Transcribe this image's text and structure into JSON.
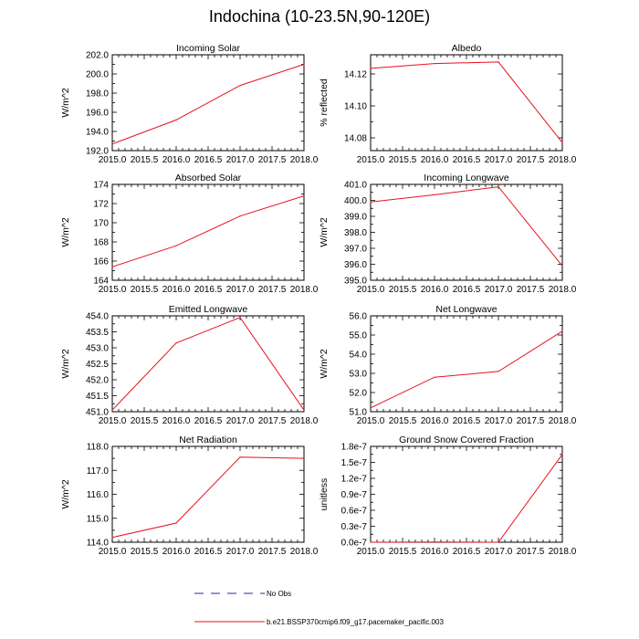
{
  "figure_title": "Indochina (10-23.5N,90-120E)",
  "legend": {
    "obs_label": "No Obs",
    "obs_color": "#2b2b8f",
    "model_label": "b.e21.BSSP370cmip6.f09_g17.pacemaker_pacific.003",
    "model_color": "#e8121d"
  },
  "chart_data": [
    {
      "type": "line",
      "title": "Incoming Solar",
      "ylabel": "W/m^2",
      "x": [
        2015.0,
        2016.0,
        2017.0,
        2018.0
      ],
      "y": [
        192.7,
        195.2,
        198.8,
        201.0
      ],
      "xlim": [
        2015.0,
        2018.0
      ],
      "ylim": [
        192.0,
        202.0
      ],
      "xticks": [
        "2015.0",
        "2015.5",
        "2016.0",
        "2016.5",
        "2017.0",
        "2017.5",
        "2018.0"
      ],
      "yticks": [
        192.0,
        194.0,
        196.0,
        198.0,
        200.0,
        202.0
      ],
      "yticklabels": [
        "192.0",
        "194.0",
        "196.0",
        "198.0",
        "200.0",
        "202.0"
      ]
    },
    {
      "type": "line",
      "title": "Albedo",
      "ylabel": "% reflected",
      "x": [
        2015.0,
        2016.0,
        2017.0,
        2018.0
      ],
      "y": [
        14.1235,
        14.1265,
        14.1275,
        14.077
      ],
      "xlim": [
        2015.0,
        2018.0
      ],
      "ylim": [
        14.072,
        14.132
      ],
      "xticks": [
        "2015.0",
        "2015.5",
        "2016.0",
        "2016.5",
        "2017.0",
        "2017.5",
        "2018.0"
      ],
      "yticks": [
        14.08,
        14.1,
        14.12
      ],
      "yticklabels": [
        "14.08",
        "14.10",
        "14.12"
      ]
    },
    {
      "type": "line",
      "title": "Absorbed Solar",
      "ylabel": "W/m^2",
      "x": [
        2015.0,
        2016.0,
        2017.0,
        2018.0
      ],
      "y": [
        165.4,
        167.6,
        170.7,
        172.8
      ],
      "xlim": [
        2015.0,
        2018.0
      ],
      "ylim": [
        164.0,
        174.0
      ],
      "xticks": [
        "2015.0",
        "2015.5",
        "2016.0",
        "2016.5",
        "2017.0",
        "2017.5",
        "2018.0"
      ],
      "yticks": [
        164,
        166,
        168,
        170,
        172,
        174
      ],
      "yticklabels": [
        "164",
        "166",
        "168",
        "170",
        "172",
        "174"
      ]
    },
    {
      "type": "line",
      "title": "Incoming Longwave",
      "ylabel": "W/m^2",
      "x": [
        2015.0,
        2016.0,
        2017.0,
        2018.0
      ],
      "y": [
        399.9,
        400.35,
        400.85,
        395.9
      ],
      "xlim": [
        2015.0,
        2018.0
      ],
      "ylim": [
        395.0,
        401.0
      ],
      "xticks": [
        "2015.0",
        "2015.5",
        "2016.0",
        "2016.5",
        "2017.0",
        "2017.5",
        "2018.0"
      ],
      "yticks": [
        395.0,
        396.0,
        397.0,
        398.0,
        399.0,
        400.0,
        401.0
      ],
      "yticklabels": [
        "395.0",
        "396.0",
        "397.0",
        "398.0",
        "399.0",
        "400.0",
        "401.0"
      ]
    },
    {
      "type": "line",
      "title": "Emitted Longwave",
      "ylabel": "W/m^2",
      "x": [
        2015.0,
        2016.0,
        2017.0,
        2018.0
      ],
      "y": [
        451.05,
        453.15,
        453.95,
        451.05
      ],
      "xlim": [
        2015.0,
        2018.0
      ],
      "ylim": [
        451.0,
        454.0
      ],
      "xticks": [
        "2015.0",
        "2015.5",
        "2016.0",
        "2016.5",
        "2017.0",
        "2017.5",
        "2018.0"
      ],
      "yticks": [
        451.0,
        451.5,
        452.0,
        452.5,
        453.0,
        453.5,
        454.0
      ],
      "yticklabels": [
        "451.0",
        "451.5",
        "452.0",
        "452.5",
        "453.0",
        "453.5",
        "454.0"
      ]
    },
    {
      "type": "line",
      "title": "Net Longwave",
      "ylabel": "W/m^2",
      "x": [
        2015.0,
        2016.0,
        2017.0,
        2018.0
      ],
      "y": [
        51.2,
        52.8,
        53.1,
        55.2
      ],
      "xlim": [
        2015.0,
        2018.0
      ],
      "ylim": [
        51.0,
        56.0
      ],
      "xticks": [
        "2015.0",
        "2015.5",
        "2016.0",
        "2016.5",
        "2017.0",
        "2017.5",
        "2018.0"
      ],
      "yticks": [
        51.0,
        52.0,
        53.0,
        54.0,
        55.0,
        56.0
      ],
      "yticklabels": [
        "51.0",
        "52.0",
        "53.0",
        "54.0",
        "55.0",
        "56.0"
      ]
    },
    {
      "type": "line",
      "title": "Net Radiation",
      "ylabel": "W/m^2",
      "x": [
        2015.0,
        2016.0,
        2017.0,
        2018.0
      ],
      "y": [
        114.2,
        114.8,
        117.55,
        117.5
      ],
      "xlim": [
        2015.0,
        2018.0
      ],
      "ylim": [
        114.0,
        118.0
      ],
      "xticks": [
        "2015.0",
        "2015.5",
        "2016.0",
        "2016.5",
        "2017.0",
        "2017.5",
        "2018.0"
      ],
      "yticks": [
        114.0,
        115.0,
        116.0,
        117.0,
        118.0
      ],
      "yticklabels": [
        "114.0",
        "115.0",
        "116.0",
        "117.0",
        "118.0"
      ]
    },
    {
      "type": "line",
      "title": "Ground Snow Covered Fraction",
      "ylabel": "unitless",
      "x": [
        2015.0,
        2016.0,
        2017.0,
        2018.0
      ],
      "y": [
        0.0,
        3e-10,
        0.0,
        1.65e-07
      ],
      "xlim": [
        2015.0,
        2018.0
      ],
      "ylim": [
        0.0,
        1.8e-07
      ],
      "xticks": [
        "2015.0",
        "2015.5",
        "2016.0",
        "2016.5",
        "2017.0",
        "2017.5",
        "2018.0"
      ],
      "yticks": [
        0.0,
        3e-08,
        6e-08,
        9e-08,
        1.2e-07,
        1.5e-07,
        1.8e-07
      ],
      "yticklabels": [
        "0.0e-7",
        "0.3e-7",
        "0.6e-7",
        "0.9e-7",
        "1.2e-7",
        "1.5e-7",
        "1.8e-7"
      ]
    }
  ]
}
